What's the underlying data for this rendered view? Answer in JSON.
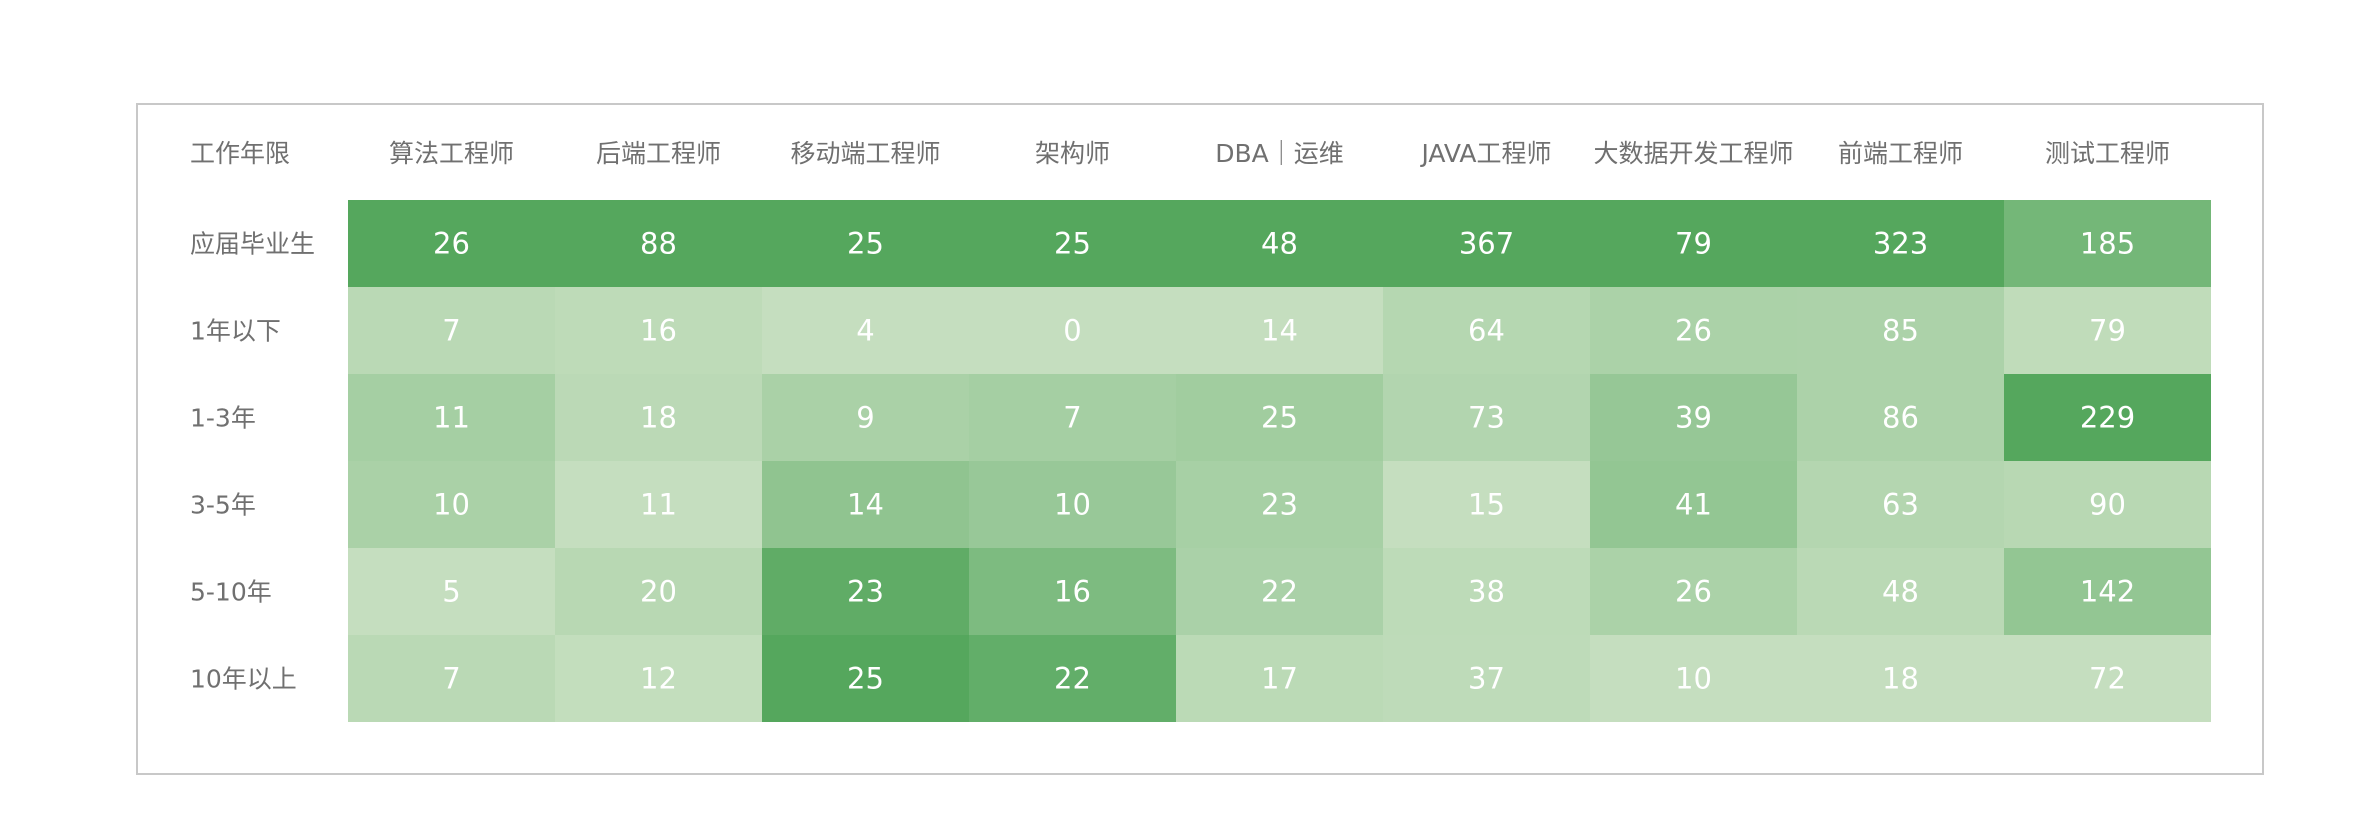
{
  "chart_data": {
    "type": "heatmap",
    "corner_label": "工作年限",
    "columns": [
      "算法工程师",
      "后端工程师",
      "移动端工程师",
      "架构师",
      "DBA｜运维",
      "JAVA工程师",
      "大数据开发工程师",
      "前端工程师",
      "测试工程师"
    ],
    "rows": [
      "应届毕业生",
      "1年以下",
      "1-3年",
      "3-5年",
      "5-10年",
      "10年以上"
    ],
    "values": [
      [
        26,
        88,
        25,
        25,
        48,
        367,
        79,
        323,
        185
      ],
      [
        7,
        16,
        4,
        0,
        14,
        64,
        26,
        85,
        79
      ],
      [
        11,
        18,
        9,
        7,
        25,
        73,
        39,
        86,
        229
      ],
      [
        10,
        11,
        14,
        10,
        23,
        15,
        41,
        63,
        90
      ],
      [
        5,
        20,
        23,
        16,
        22,
        38,
        26,
        48,
        142
      ],
      [
        7,
        12,
        25,
        22,
        17,
        37,
        10,
        18,
        72
      ]
    ],
    "color_low": "#d4e6cc",
    "color_high": "#55a75d",
    "legend": "none"
  }
}
